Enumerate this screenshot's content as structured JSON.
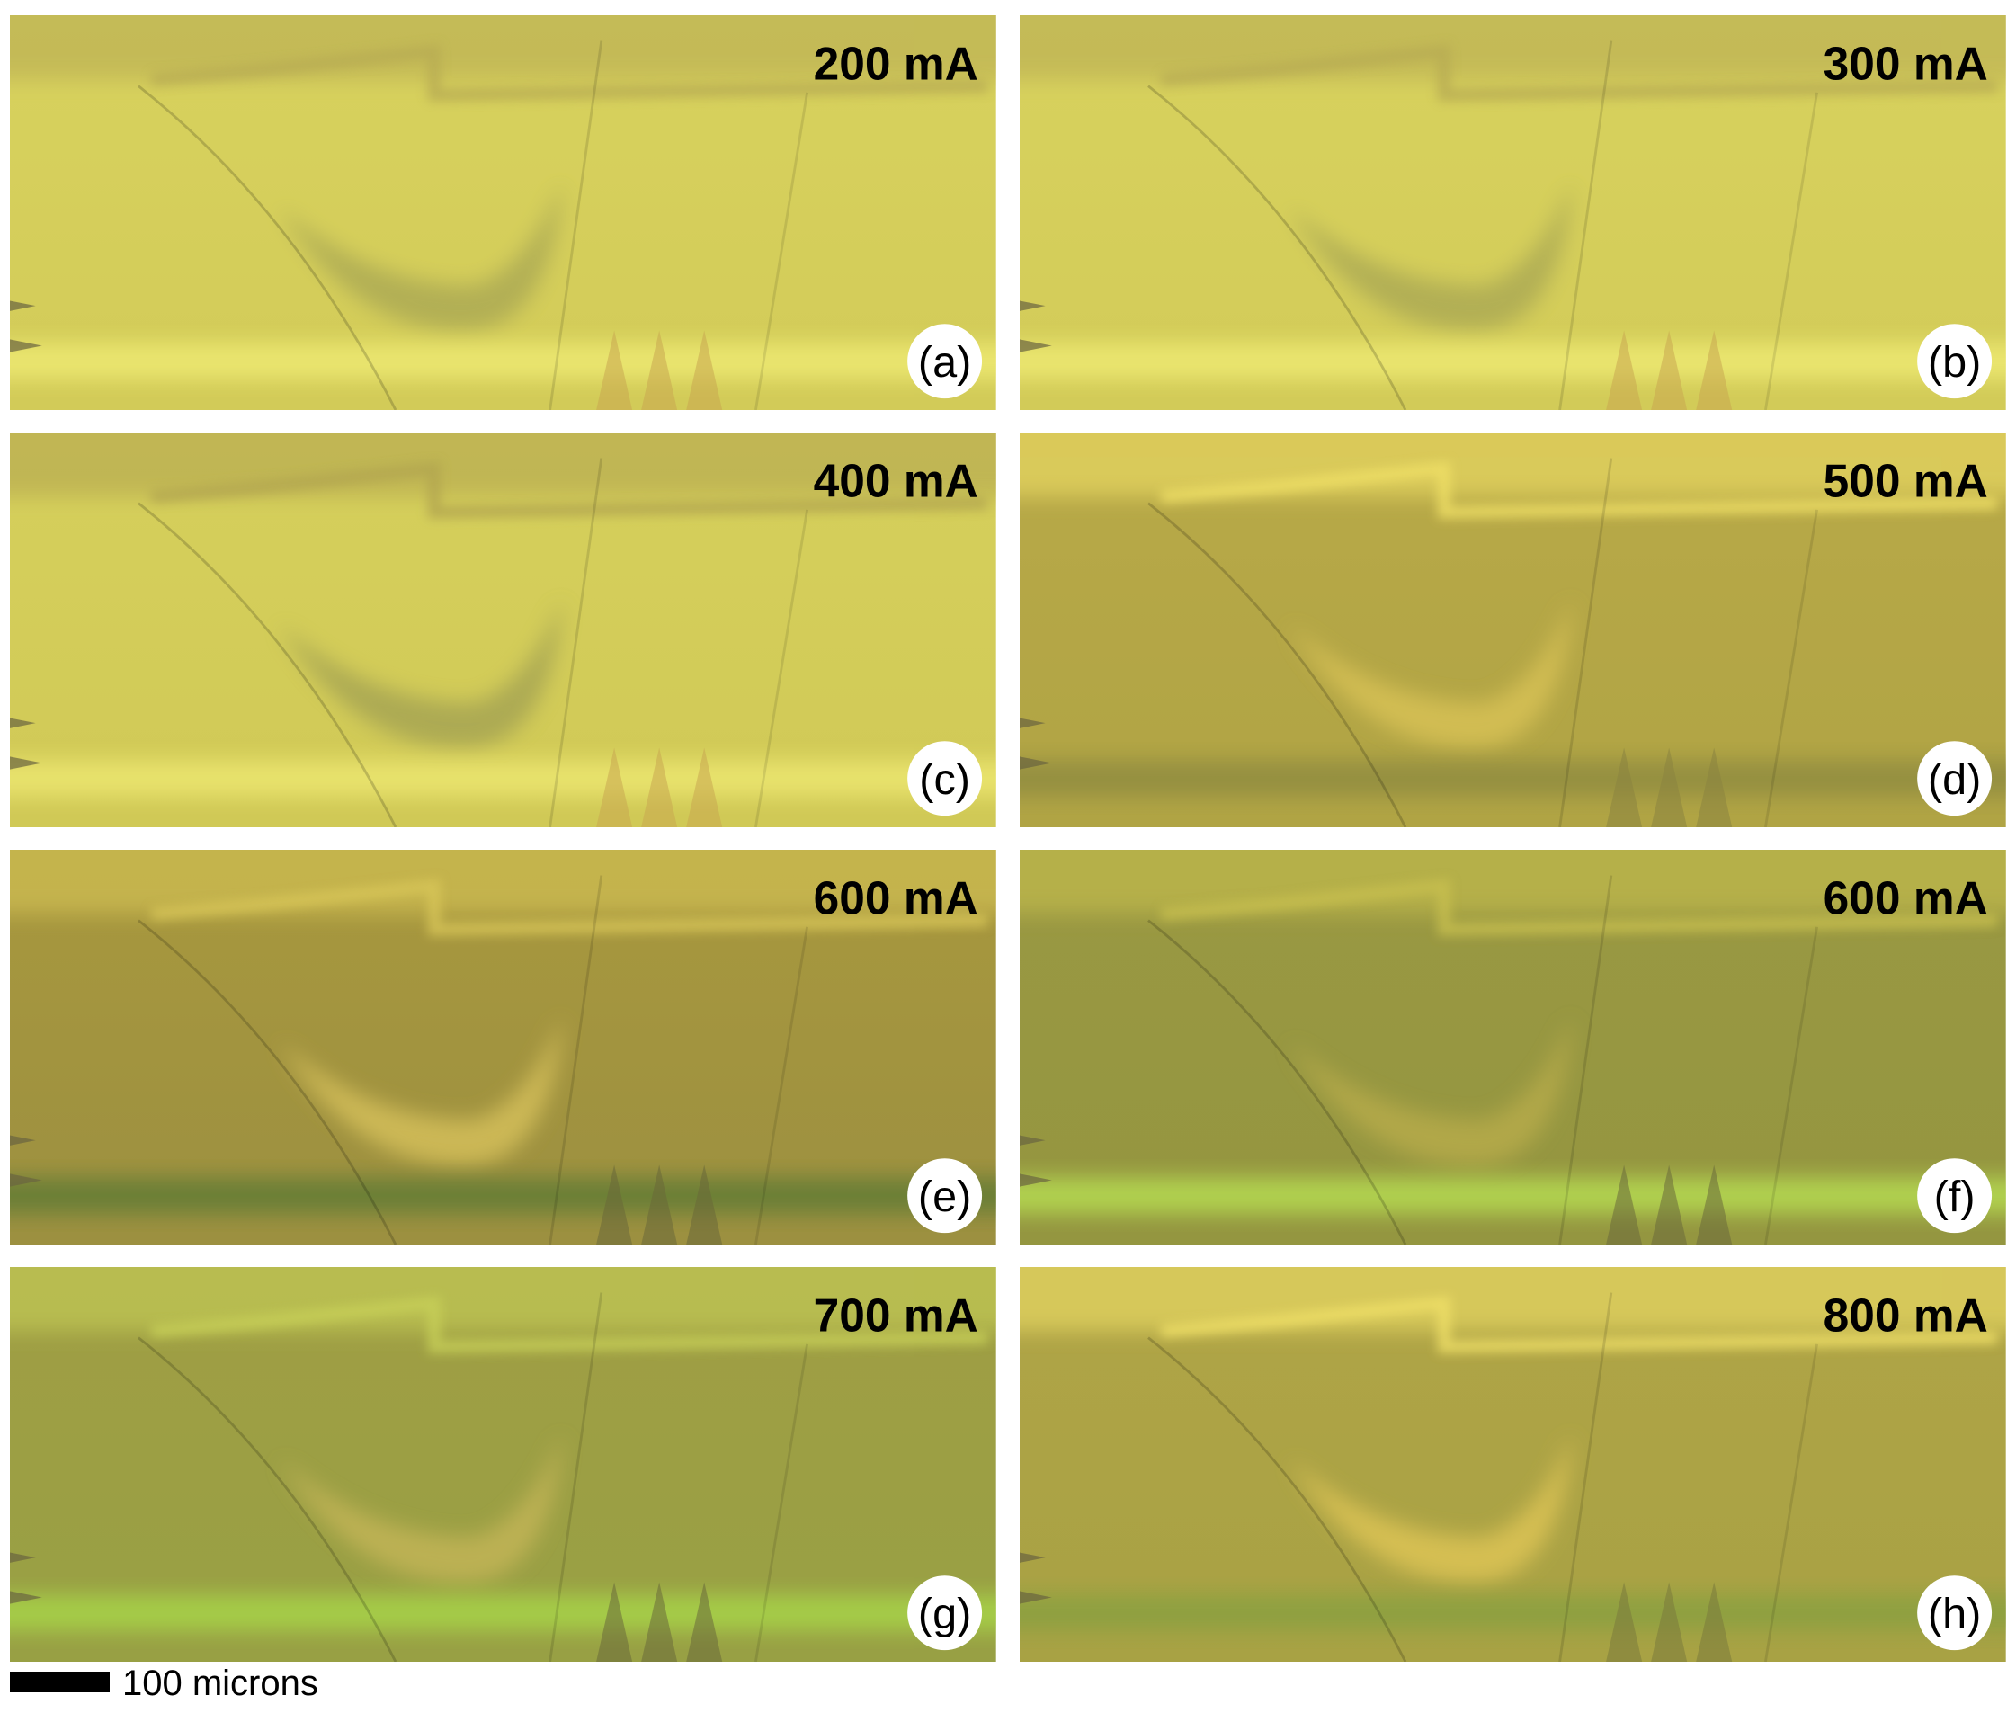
{
  "panels": [
    {
      "current": "200 mA",
      "label": "(a)"
    },
    {
      "current": "300 mA",
      "label": "(b)"
    },
    {
      "current": "400 mA",
      "label": "(c)"
    },
    {
      "current": "500 mA",
      "label": "(d)"
    },
    {
      "current": "600 mA",
      "label": "(e)"
    },
    {
      "current": "600 mA",
      "label": "(f)"
    },
    {
      "current": "700 mA",
      "label": "(g)"
    },
    {
      "current": "800 mA",
      "label": "(h)"
    }
  ],
  "scale_bar": {
    "label": "100 microns"
  }
}
